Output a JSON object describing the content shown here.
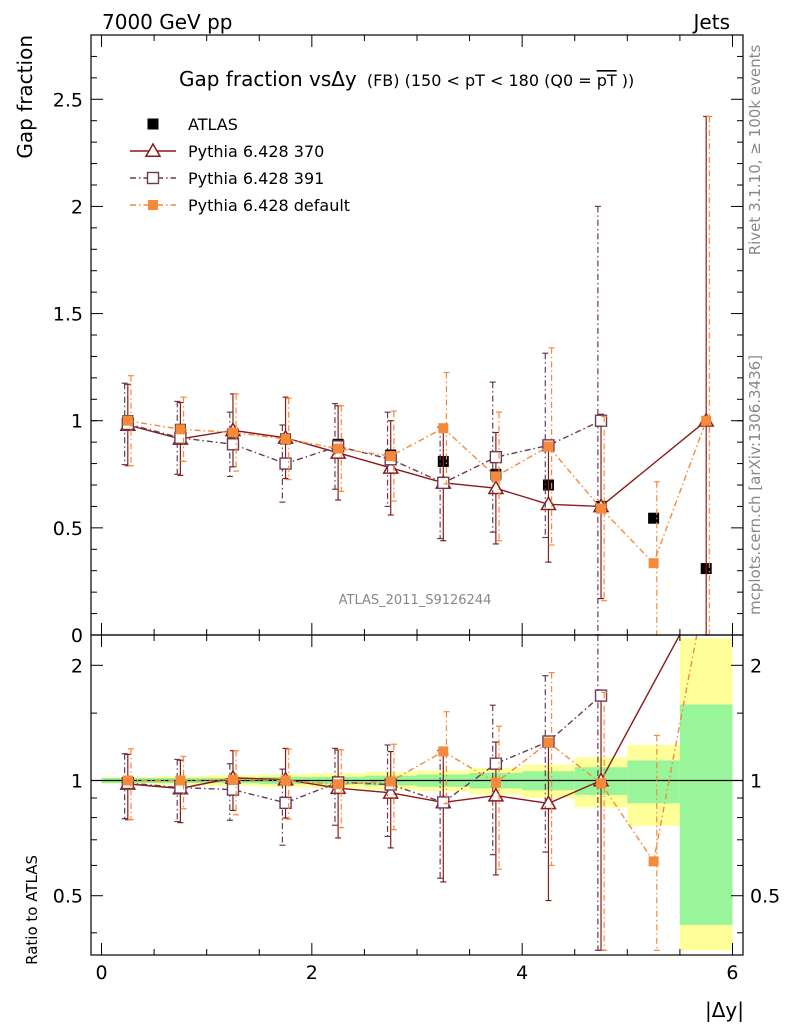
{
  "header": {
    "left": "7000 GeV pp",
    "right": "Jets"
  },
  "side_labels": {
    "rivet": "Rivet 3.1.10, ≥ 100k events",
    "mcplots": "mcplots.cern.ch [arXiv:1306.3436]"
  },
  "plot_title": {
    "main": "Gap fraction vsΔy",
    "sub": "(FB) (150 < pT < 180 (Q0 =",
    "overlined": "pT",
    "close": "))"
  },
  "watermark": "ATLAS_2011_S9126244",
  "axes": {
    "top_ylabel": "Gap fraction",
    "bottom_ylabel": "Ratio to ATLAS",
    "xlabel": "|Δy|",
    "top_yticks": [
      "0",
      "0.5",
      "1",
      "1.5",
      "2",
      "2.5"
    ],
    "ratio_yticks": [
      "0.5",
      "1",
      "2"
    ],
    "xticks": [
      "0",
      "2",
      "4",
      "6"
    ]
  },
  "colors": {
    "atlas": "#000000",
    "p370": "#8b1a1a",
    "p391": "#6b3a55",
    "pdef": "#f58a3a",
    "band_inner": "#99f599",
    "band_outer": "#ffff99"
  },
  "chart_data": {
    "type": "scatter",
    "title": "Gap fraction vs Δy (FB) (150 < pT < 180 (Q0 = avg pT))",
    "xlabel": "|Δy|",
    "ylabel": "Gap fraction",
    "xlim": [
      -0.1,
      6.1
    ],
    "ylim": [
      0,
      2.8
    ],
    "ratio_ylim": [
      0.35,
      2.4
    ],
    "x": [
      0.25,
      0.75,
      1.25,
      1.75,
      2.25,
      2.75,
      3.25,
      3.75,
      4.25,
      4.75,
      5.25,
      5.75
    ],
    "legend_position": "top-left",
    "series": [
      {
        "name": "ATLAS",
        "key": "atlas",
        "values": [
          1.0,
          0.96,
          0.94,
          0.915,
          0.89,
          0.84,
          0.81,
          0.75,
          0.7,
          0.6,
          0.545,
          0.31
        ],
        "band_inner": [
          0.015,
          0.015,
          0.015,
          0.02,
          0.02,
          0.025,
          0.03,
          0.035,
          0.04,
          0.05,
          0.07,
          0.18
        ],
        "band_outer": [
          0.02,
          0.025,
          0.03,
          0.035,
          0.04,
          0.045,
          0.05,
          0.06,
          0.07,
          0.09,
          0.13,
          0.42
        ]
      },
      {
        "name": "Pythia 6.428 370",
        "key": "p370",
        "values": [
          0.98,
          0.915,
          0.955,
          0.92,
          0.85,
          0.78,
          0.71,
          0.685,
          0.61,
          0.6,
          null,
          1.0
        ],
        "err": [
          0.19,
          0.17,
          0.17,
          0.19,
          0.22,
          0.22,
          0.27,
          0.26,
          0.27,
          0.43,
          null,
          1.42
        ]
      },
      {
        "name": "Pythia 6.428 391",
        "key": "p391",
        "values": [
          0.985,
          0.92,
          0.89,
          0.8,
          0.88,
          0.82,
          0.71,
          0.83,
          0.885,
          1.0,
          null,
          null
        ],
        "err": [
          0.19,
          0.17,
          0.15,
          0.18,
          0.2,
          0.22,
          0.26,
          0.35,
          0.43,
          1.0,
          null,
          null
        ]
      },
      {
        "name": "Pythia 6.428 default",
        "key": "pdef",
        "values": [
          1.0,
          0.96,
          0.945,
          0.915,
          0.87,
          0.835,
          0.965,
          0.74,
          0.88,
          0.59,
          0.335,
          1.0
        ],
        "err": [
          0.21,
          0.15,
          0.18,
          0.19,
          0.2,
          0.21,
          0.26,
          0.3,
          0.46,
          0.43,
          0.38,
          1.42
        ]
      }
    ]
  }
}
